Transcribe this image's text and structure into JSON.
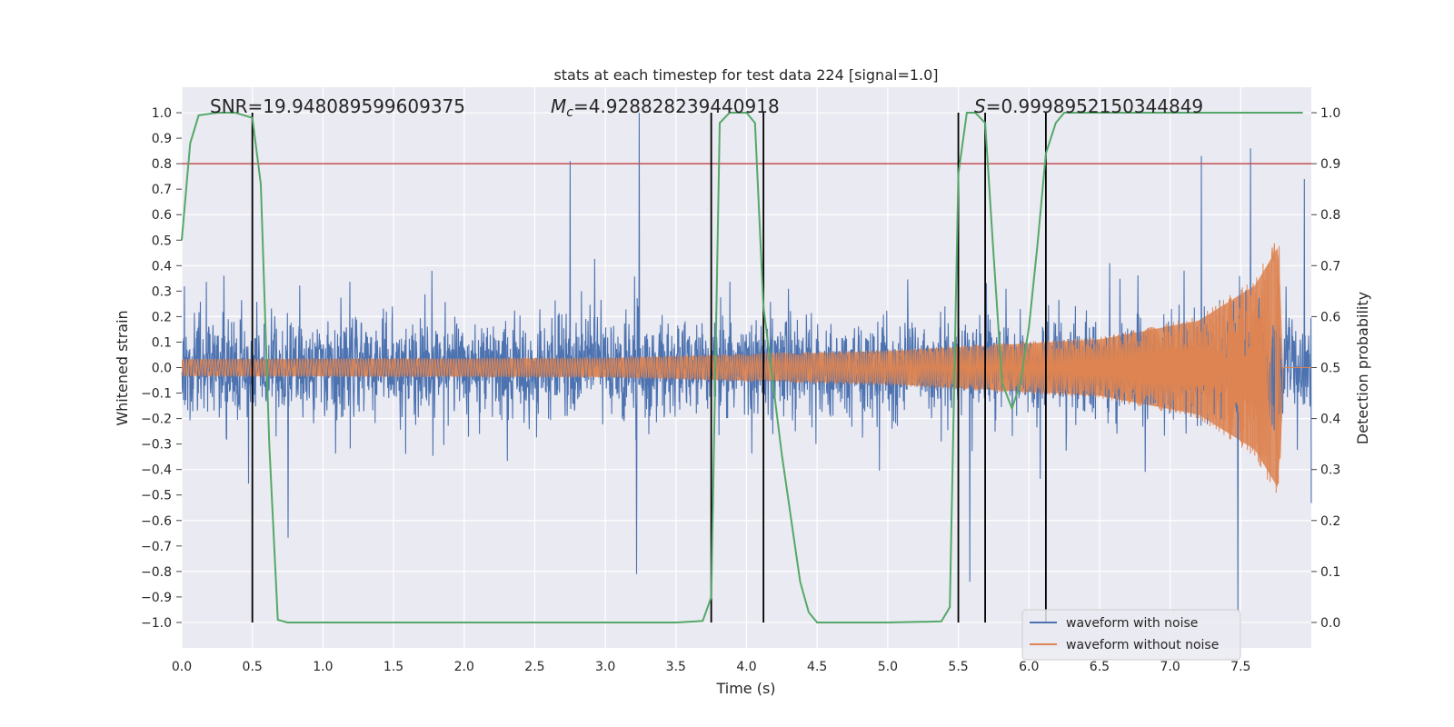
{
  "chart_data": {
    "type": "line",
    "title": "stats at each timestep for test data 224 [signal=1.0]",
    "xlabel": "Time (s)",
    "ylabel": "Whitened strain",
    "y2label": "Detection probability",
    "xlim": [
      0.0,
      8.0
    ],
    "ylim": [
      -1.1,
      1.1
    ],
    "y2lim": [
      -0.05,
      1.05
    ],
    "xticks": [
      "0.0",
      "0.5",
      "1.0",
      "1.5",
      "2.0",
      "2.5",
      "3.0",
      "3.5",
      "4.0",
      "4.5",
      "5.0",
      "5.5",
      "6.0",
      "6.5",
      "7.0",
      "7.5"
    ],
    "yticks": [
      "1.0",
      "0.9",
      "0.8",
      "0.7",
      "0.6",
      "0.5",
      "0.4",
      "0.3",
      "0.2",
      "0.1",
      "0.0",
      "−0.1",
      "−0.2",
      "−0.3",
      "−0.4",
      "−0.5",
      "−0.6",
      "−0.7",
      "−0.8",
      "−0.9",
      "−1.0"
    ],
    "y2ticks": [
      "1.0",
      "0.9",
      "0.8",
      "0.7",
      "0.6",
      "0.5",
      "0.4",
      "0.3",
      "0.2",
      "0.1",
      "0.0"
    ],
    "threshold": 0.9,
    "vlines": [
      0.5,
      3.75,
      4.12,
      5.5,
      5.69,
      6.12
    ],
    "annotations": {
      "snr": "SNR=19.948089599609375",
      "mc_symbol": "M",
      "mc_sub": "c",
      "mc_value": "=4.928828239440918",
      "s_symbol": "S",
      "s_value": "=0.9998952150344849"
    },
    "legend": {
      "placement": "lower-right",
      "entries": [
        "waveform with noise",
        "waveform without noise"
      ]
    },
    "series": [
      {
        "name": "waveform with noise",
        "color": "#4c72b0",
        "description": "noisy whitened strain, amplitude ~0.3-0.6 with spikes up to 1.0",
        "spikes": [
          [
            3.24,
            1.0
          ],
          [
            3.22,
            -0.81
          ],
          [
            5.58,
            -0.84
          ],
          [
            7.48,
            -0.96
          ],
          [
            7.95,
            0.74
          ],
          [
            2.75,
            0.81
          ],
          [
            7.57,
            0.86
          ],
          [
            7.22,
            0.83
          ]
        ]
      },
      {
        "name": "waveform without noise",
        "color": "#dd8452",
        "description": "chirp signal, amplitude grows from ~0.035 to ~0.5 at merger near t=7.77",
        "amplitude_points": [
          [
            0.0,
            0.035
          ],
          [
            3.0,
            0.04
          ],
          [
            5.0,
            0.07
          ],
          [
            6.5,
            0.12
          ],
          [
            7.2,
            0.2
          ],
          [
            7.6,
            0.35
          ],
          [
            7.77,
            0.52
          ],
          [
            7.8,
            0.0
          ],
          [
            8.0,
            0.0
          ]
        ]
      },
      {
        "name": "detection probability",
        "color": "#55a868",
        "axis": "right",
        "x": [
          0.0,
          0.06,
          0.12,
          0.25,
          0.38,
          0.5,
          0.56,
          0.62,
          0.68,
          0.75,
          1.0,
          2.0,
          3.0,
          3.5,
          3.69,
          3.75,
          3.81,
          3.88,
          4.0,
          4.06,
          4.12,
          4.25,
          4.38,
          4.44,
          4.5,
          5.0,
          5.38,
          5.44,
          5.5,
          5.56,
          5.62,
          5.69,
          5.75,
          5.81,
          5.88,
          5.94,
          6.0,
          6.06,
          6.12,
          6.19,
          6.25,
          7.0,
          7.94
        ],
        "values": [
          0.75,
          0.94,
          0.995,
          1.0,
          1.0,
          0.99,
          0.86,
          0.35,
          0.005,
          0.0,
          0.0,
          0.0,
          0.0,
          0.0,
          0.003,
          0.05,
          0.98,
          1.0,
          1.0,
          0.98,
          0.62,
          0.33,
          0.08,
          0.02,
          0.0,
          0.0,
          0.002,
          0.03,
          0.88,
          1.0,
          1.0,
          0.98,
          0.72,
          0.47,
          0.42,
          0.47,
          0.58,
          0.74,
          0.92,
          0.98,
          1.0,
          1.0,
          1.0
        ]
      }
    ]
  }
}
